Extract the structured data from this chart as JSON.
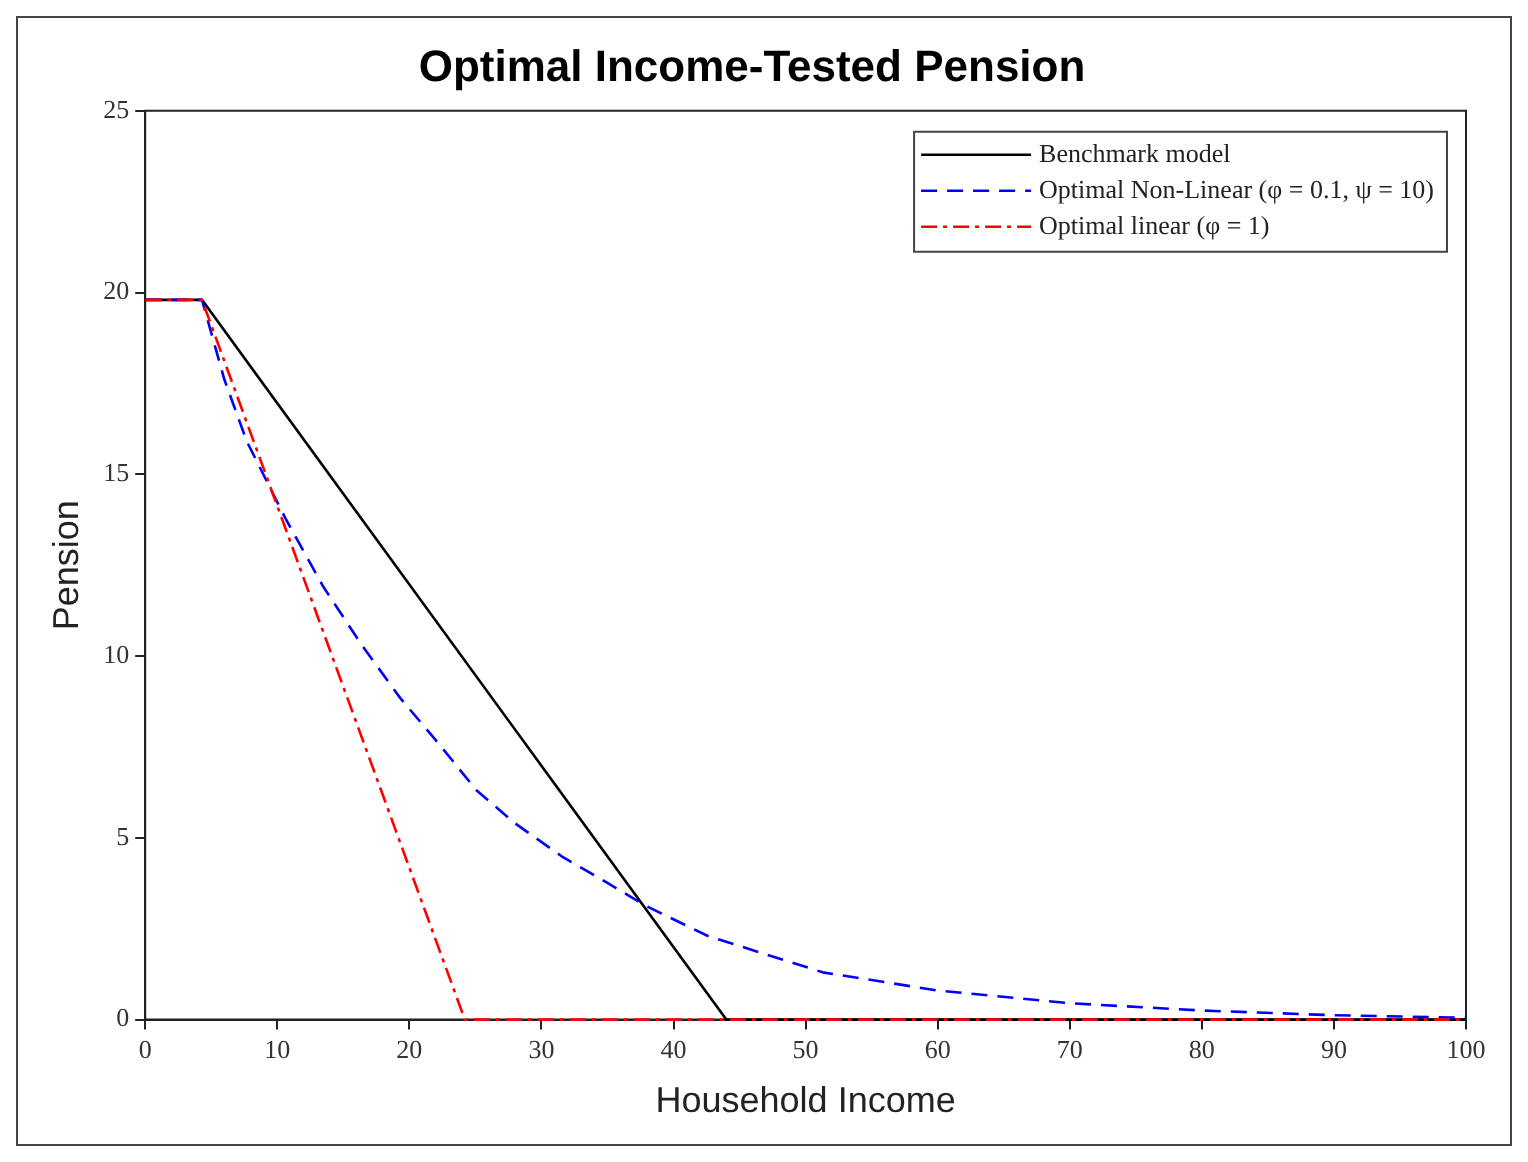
{
  "chart_data": {
    "type": "line",
    "title": "Optimal Income-Tested Pension",
    "xlabel": "Household Income",
    "ylabel": "Pension",
    "xlim": [
      0,
      100
    ],
    "xticks": [
      0,
      10,
      20,
      30,
      40,
      50,
      60,
      70,
      80,
      90,
      100
    ],
    "ylim": [
      0,
      25
    ],
    "yticks": [
      0,
      5,
      10,
      15,
      20,
      25
    ],
    "grid": false,
    "legend": "top right",
    "marker": "none",
    "series": [
      {
        "name": "Benchmark model",
        "color": "#000000",
        "line_style": "solid",
        "x": [
          0,
          4.3,
          44,
          100
        ],
        "values": [
          19.8,
          19.8,
          0,
          0
        ]
      },
      {
        "name": "Optimal Non-Linear (φ = 0.1, ψ = 10)",
        "color": "#0000ff",
        "line_style": "dashed",
        "x": [
          0,
          4.3,
          6,
          7.7,
          10.6,
          13.5,
          16.4,
          19.3,
          22.2,
          25.1,
          28,
          31.5,
          35,
          37.9,
          42.6,
          51.3,
          60,
          70,
          80,
          90,
          100
        ],
        "values": [
          19.8,
          19.8,
          17.6,
          15.9,
          13.8,
          11.9,
          10.3,
          8.85,
          7.6,
          6.3,
          5.4,
          4.5,
          3.76,
          3.13,
          2.3,
          1.3,
          0.8,
          0.45,
          0.25,
          0.12,
          0.05
        ]
      },
      {
        "name": "Optimal linear (φ = 1)",
        "color": "#ff0000",
        "line_style": "dashdot",
        "x": [
          0,
          4.3,
          24.2,
          100
        ],
        "values": [
          19.8,
          19.8,
          0,
          0
        ]
      }
    ]
  }
}
